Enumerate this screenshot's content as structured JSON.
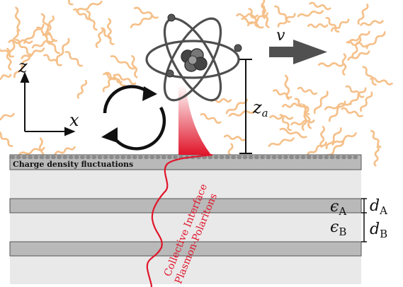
{
  "colors": {
    "wiggle": "#f5c08a",
    "atom": "#4f4f4f",
    "plasmon": "#e0152a",
    "slab_dark": "#b9b9b9",
    "slab_light": "#e9e9e9",
    "arrow": "#505050"
  },
  "icons": {
    "atom": "atom-icon",
    "rotation": "circular-arrows-icon",
    "velocity_arrow": "arrow-right-icon"
  },
  "labels": {
    "axis_z": "z",
    "axis_x": "x",
    "velocity": "v",
    "height": "z",
    "height_sub": "a",
    "charge_fluct": "Charge density fluctuations",
    "plasmon_line1": "Collective Interface",
    "plasmon_line2": "Plasmon-Polaritons",
    "eps_a": "ϵ",
    "eps_a_sub": "A",
    "eps_b": "ϵ",
    "eps_b_sub": "B",
    "d_a": "d",
    "d_a_sub": "A",
    "d_b": "d",
    "d_b_sub": "B"
  }
}
